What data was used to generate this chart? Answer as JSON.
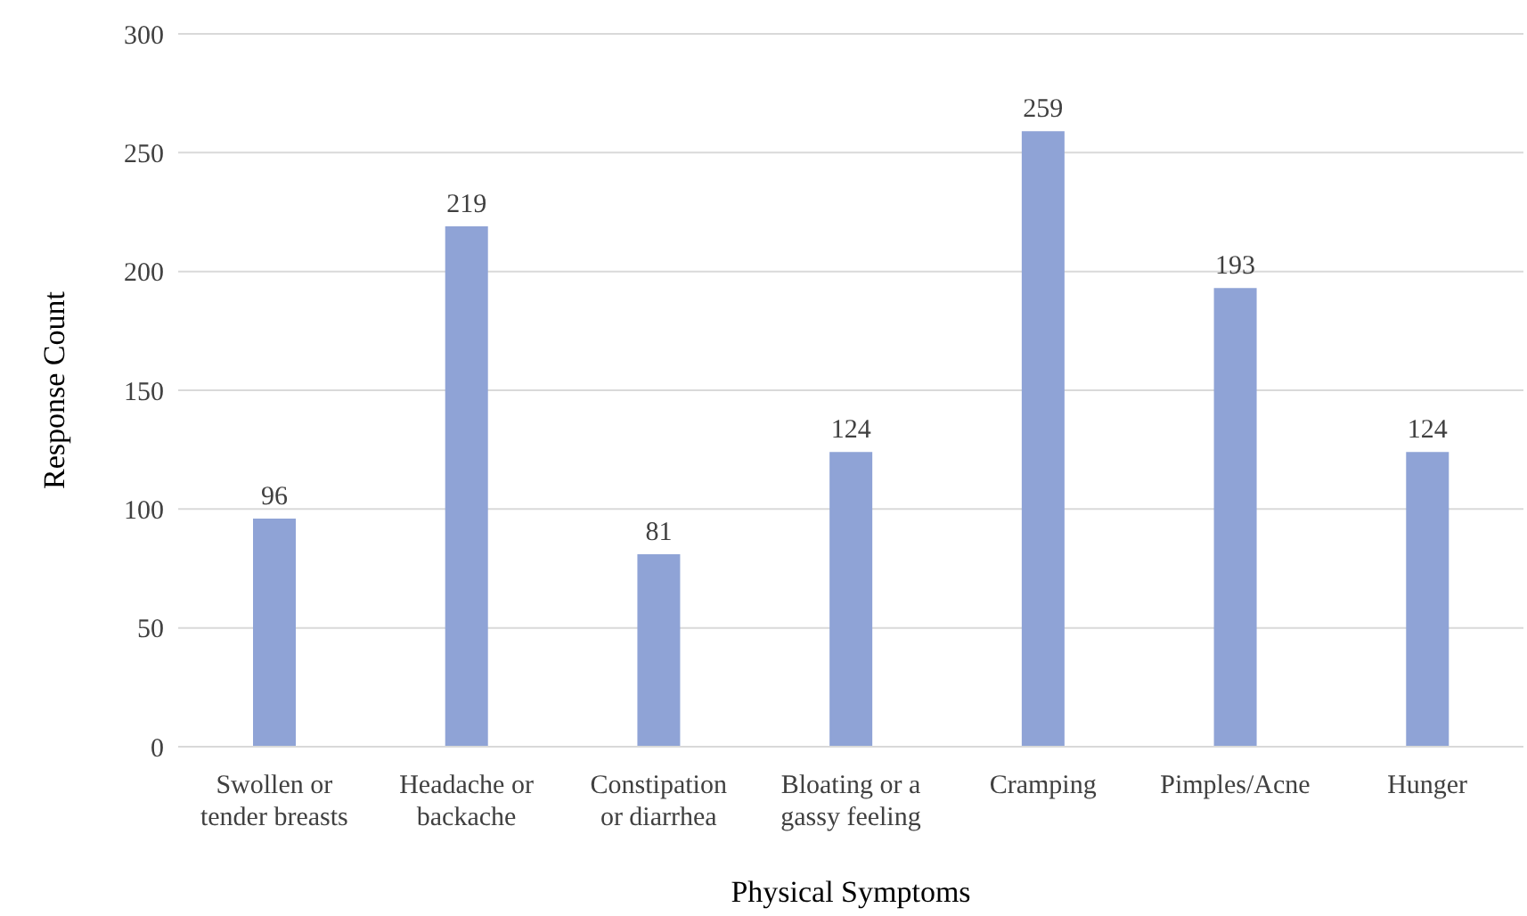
{
  "chart_data": {
    "type": "bar",
    "xlabel": "Physical Symptoms",
    "ylabel": "Response Count",
    "categories": [
      "Swollen or tender breasts",
      "Headache or backache",
      "Constipation or diarrhea",
      "Bloating or a gassy feeling",
      "Cramping",
      "Pimples/Acne",
      "Hunger"
    ],
    "values": [
      96,
      219,
      81,
      124,
      259,
      193,
      124
    ],
    "color": "#8fa3d6",
    "ylim": [
      0,
      300
    ],
    "yticks": [
      0,
      50,
      100,
      150,
      200,
      250,
      300
    ],
    "grid": "y",
    "data_labels": true,
    "legend": false
  }
}
